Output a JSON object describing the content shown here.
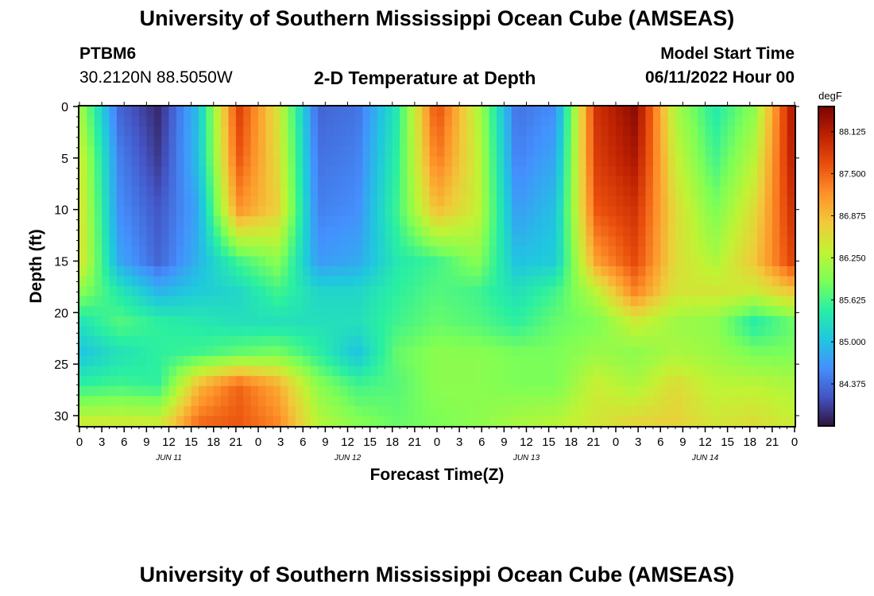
{
  "header": {
    "title": "University of Southern Mississippi Ocean Cube (AMSEAS)",
    "station_id": "PTBM6",
    "station_coords": "30.2120N  88.5050W",
    "chart_title": "2-D Temperature at Depth",
    "model_start_label": "Model Start Time",
    "model_start_value": "06/11/2022 Hour 00"
  },
  "footer": {
    "title": "University of Southern Mississippi Ocean Cube (AMSEAS)"
  },
  "chart_data": {
    "type": "heatmap",
    "title": "2-D Temperature at Depth",
    "xlabel": "Forecast Time(Z)",
    "ylabel": "Depth (ft)",
    "x_hours": [
      0,
      3,
      6,
      9,
      12,
      15,
      18,
      21,
      24,
      27,
      30,
      33,
      36,
      39,
      42,
      45,
      48,
      51,
      54,
      57,
      60,
      63,
      66,
      69,
      72,
      75,
      78,
      81,
      84,
      87,
      90,
      93,
      96
    ],
    "x_tick_labels": [
      "0",
      "3",
      "6",
      "9",
      "12",
      "15",
      "18",
      "21",
      "0",
      "3",
      "6",
      "9",
      "12",
      "15",
      "18",
      "21",
      "0",
      "3",
      "6",
      "9",
      "12",
      "15",
      "18",
      "21",
      "0",
      "3",
      "6",
      "9",
      "12",
      "15",
      "18",
      "21",
      "0"
    ],
    "xlim": [
      0,
      96
    ],
    "date_labels": [
      {
        "text": "JUN 11",
        "hour": 12
      },
      {
        "text": "JUN 12",
        "hour": 36
      },
      {
        "text": "JUN 13",
        "hour": 60
      },
      {
        "text": "JUN 14",
        "hour": 84
      }
    ],
    "y_ticks": [
      0,
      5,
      10,
      15,
      20,
      25,
      30
    ],
    "ylim": [
      0,
      31
    ],
    "y_inverted": true,
    "colorbar": {
      "unit": "degF",
      "ticks": [
        88.125,
        87.5,
        86.875,
        86.25,
        85.625,
        85.0,
        84.375
      ],
      "tick_labels": [
        "88.125",
        "87.500",
        "86.875",
        "86.250",
        "85.625",
        "85.000",
        "84.375"
      ],
      "range": [
        83.75,
        88.5
      ],
      "colormap": [
        "#30123b",
        "#4454c4",
        "#4490fe",
        "#1fc8de",
        "#29efa2",
        "#7dff56",
        "#c1f334",
        "#f1ca3a",
        "#fe922a",
        "#ea4f0d",
        "#be2102",
        "#7a0403"
      ]
    },
    "temperature_grid_degF": [
      {
        "depth_ft": 0,
        "values": [
          86.2,
          84.3,
          83.9,
          85.0,
          87.8,
          86.5,
          84.3,
          84.4,
          85.4,
          87.7,
          86.3,
          84.4,
          84.6,
          87.9,
          88.4,
          86.2,
          85.4,
          86.0,
          88.3
        ]
      },
      {
        "depth_ft": 5,
        "values": [
          86.5,
          84.5,
          84.0,
          85.0,
          87.6,
          86.6,
          84.4,
          84.5,
          85.5,
          87.4,
          86.4,
          84.5,
          84.8,
          87.8,
          88.2,
          86.4,
          85.6,
          86.3,
          88.2
        ]
      },
      {
        "depth_ft": 10,
        "values": [
          86.6,
          84.6,
          84.2,
          84.8,
          87.2,
          86.7,
          84.5,
          84.6,
          85.6,
          86.9,
          86.4,
          84.7,
          85.0,
          87.6,
          87.9,
          86.6,
          85.9,
          86.6,
          88.0
        ]
      },
      {
        "depth_ft": 15,
        "values": [
          86.6,
          84.8,
          84.3,
          84.9,
          85.6,
          86.0,
          84.7,
          84.8,
          85.4,
          85.6,
          86.0,
          85.0,
          85.1,
          87.1,
          87.7,
          86.6,
          86.2,
          86.8,
          87.8
        ]
      },
      {
        "depth_ft": 18,
        "values": [
          86.0,
          85.4,
          84.9,
          85.1,
          85.2,
          85.6,
          85.2,
          85.2,
          85.5,
          85.7,
          85.6,
          85.3,
          85.6,
          86.3,
          87.3,
          86.5,
          86.5,
          86.4,
          86.8
        ]
      },
      {
        "depth_ft": 21,
        "values": [
          85.3,
          85.7,
          85.5,
          85.4,
          85.3,
          85.3,
          85.3,
          85.3,
          85.6,
          85.8,
          85.7,
          85.5,
          85.8,
          85.9,
          86.4,
          86.1,
          86.0,
          85.4,
          85.8
        ]
      },
      {
        "depth_ft": 24,
        "values": [
          85.0,
          85.3,
          85.5,
          85.6,
          85.8,
          85.9,
          85.5,
          85.0,
          85.8,
          86.0,
          86.0,
          85.9,
          85.9,
          86.1,
          86.0,
          86.2,
          86.1,
          85.9,
          85.9
        ]
      },
      {
        "depth_ft": 27,
        "values": [
          85.5,
          85.6,
          85.5,
          86.9,
          87.5,
          87.0,
          86.0,
          85.6,
          85.7,
          86.0,
          86.0,
          85.9,
          85.9,
          86.4,
          86.2,
          86.6,
          86.3,
          86.3,
          86.2
        ]
      },
      {
        "depth_ft": 31,
        "values": [
          86.5,
          86.5,
          86.5,
          87.5,
          87.6,
          87.3,
          86.3,
          86.0,
          85.8,
          85.9,
          86.0,
          86.2,
          86.3,
          86.5,
          86.7,
          86.7,
          86.5,
          86.6,
          86.4
        ]
      }
    ],
    "grid_time_step_hours": 5.333
  }
}
